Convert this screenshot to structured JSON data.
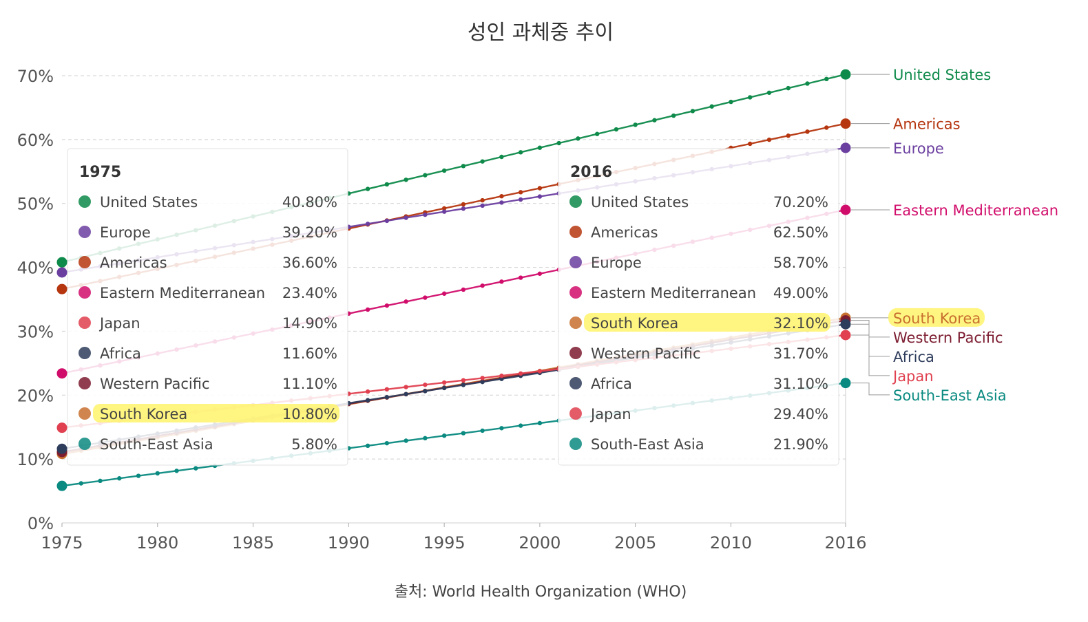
{
  "chart_data": {
    "type": "line",
    "title": "성인 과체중 추이",
    "source": "출처: World Health Organization (WHO)",
    "xlabel": "",
    "ylabel": "",
    "x_ticks": [
      1975,
      1980,
      1985,
      1990,
      1995,
      2000,
      2005,
      2010,
      2016
    ],
    "y_ticks": [
      "0%",
      "10%",
      "20%",
      "30%",
      "40%",
      "50%",
      "60%",
      "70%"
    ],
    "xlim": [
      1975,
      2016
    ],
    "ylim": [
      0,
      70
    ],
    "grid": true,
    "highlight_series": "South Korea",
    "series": [
      {
        "name": "United States",
        "color": "#0e8a4a",
        "highlight": false,
        "start": 40.8,
        "end": 70.2,
        "start_label": "40.80%",
        "end_label": "70.20%"
      },
      {
        "name": "Americas",
        "color": "#b5360f",
        "highlight": false,
        "start": 36.6,
        "end": 62.5,
        "start_label": "36.60%",
        "end_label": "62.50%"
      },
      {
        "name": "Europe",
        "color": "#6b3fa0",
        "highlight": false,
        "start": 39.2,
        "end": 58.7,
        "start_label": "39.20%",
        "end_label": "58.70%"
      },
      {
        "name": "Eastern Mediterranean",
        "color": "#d10d6b",
        "highlight": false,
        "start": 23.4,
        "end": 49.0,
        "start_label": "23.40%",
        "end_label": "49.00%"
      },
      {
        "name": "South Korea",
        "color": "#c8702f",
        "highlight": true,
        "start": 10.8,
        "end": 32.1,
        "start_label": "10.80%",
        "end_label": "32.10%"
      },
      {
        "name": "Western Pacific",
        "color": "#7c1c30",
        "highlight": false,
        "start": 11.1,
        "end": 31.7,
        "start_label": "11.10%",
        "end_label": "31.70%"
      },
      {
        "name": "Africa",
        "color": "#2f3d5c",
        "highlight": false,
        "start": 11.6,
        "end": 31.1,
        "start_label": "11.60%",
        "end_label": "31.10%"
      },
      {
        "name": "Japan",
        "color": "#e0404f",
        "highlight": false,
        "start": 14.9,
        "end": 29.4,
        "start_label": "14.90%",
        "end_label": "29.40%"
      },
      {
        "name": "South-East Asia",
        "color": "#0a8a80",
        "highlight": false,
        "start": 5.8,
        "end": 21.9,
        "start_label": "5.80%",
        "end_label": "21.90%"
      }
    ],
    "tooltips": [
      {
        "year": "1975",
        "order": [
          "United States",
          "Europe",
          "Americas",
          "Eastern Mediterranean",
          "Japan",
          "Africa",
          "Western Pacific",
          "South Korea",
          "South-East Asia"
        ]
      },
      {
        "year": "2016",
        "order": [
          "United States",
          "Americas",
          "Europe",
          "Eastern Mediterranean",
          "South Korea",
          "Western Pacific",
          "Africa",
          "Japan",
          "South-East Asia"
        ]
      }
    ]
  }
}
